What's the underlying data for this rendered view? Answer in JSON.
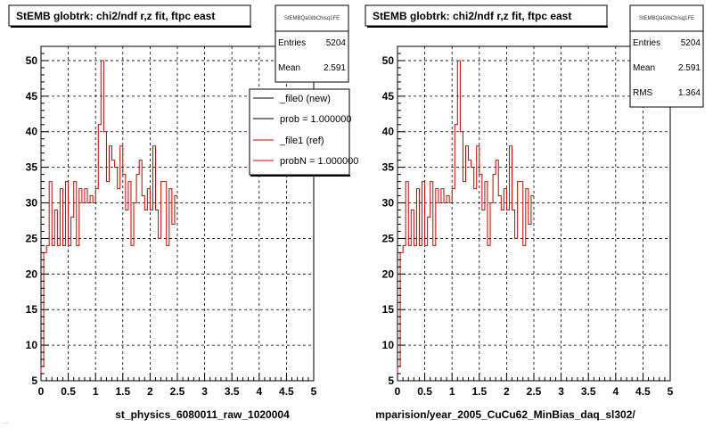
{
  "footer_text": "...",
  "legend": {
    "entries": [
      {
        "label": "_file0 (new)",
        "color": "#000000"
      },
      {
        "label": "prob = 1.000000",
        "color": "#000000"
      },
      {
        "label": "_file1 (ref)",
        "color": "#cc0000"
      },
      {
        "label": "probN = 1.000000",
        "color": "#cc0000"
      }
    ]
  },
  "chart_data": [
    {
      "type": "step",
      "title": "StEMB globtrk: chi2/ndf r,z fit, ftpc east",
      "stats": {
        "name": "StEMBQaGlbChisq1FE",
        "rows": [
          {
            "label": "Entries",
            "value": "5204"
          },
          {
            "label": "Mean",
            "value": "2.591"
          }
        ]
      },
      "xlabel": "st_physics_6080011_raw_1020004",
      "xlim": [
        0,
        5
      ],
      "ylim": [
        5,
        52
      ],
      "xticks": [
        "0",
        "0.5",
        "1",
        "1.5",
        "2",
        "2.5",
        "3",
        "3.5",
        "4",
        "4.5",
        "5"
      ],
      "yticks": [
        "5",
        "10",
        "15",
        "20",
        "25",
        "30",
        "35",
        "40",
        "45",
        "50"
      ],
      "grid": true,
      "bin_width": 0.05,
      "x_start": 0,
      "values": [
        7,
        23,
        24,
        33,
        24,
        29,
        24,
        32,
        24,
        33,
        24,
        28,
        33,
        24,
        32,
        30,
        32,
        30,
        31,
        30,
        32,
        41,
        50,
        40,
        33,
        38,
        36,
        35,
        32,
        38,
        34,
        29,
        33,
        24,
        30,
        34,
        36,
        31,
        29,
        32,
        29,
        38,
        29,
        25,
        33,
        33,
        24,
        32,
        27,
        31
      ],
      "series_color": "#cc0000"
    },
    {
      "type": "step",
      "title": "StEMB globtrk: chi2/ndf r,z fit, ftpc east",
      "stats": {
        "name": "StEMBQaGlbChisq1FE",
        "rows": [
          {
            "label": "Entries",
            "value": "5204"
          },
          {
            "label": "Mean",
            "value": "2.591"
          },
          {
            "label": "RMS",
            "value": "1.364"
          }
        ]
      },
      "xlabel": "mparision/year_2005_CuCu62_MinBias_daq_sl302/",
      "xlim": [
        0,
        5
      ],
      "ylim": [
        5,
        52
      ],
      "xticks": [
        "0",
        "0.5",
        "1",
        "1.5",
        "2",
        "2.5",
        "3",
        "3.5",
        "4",
        "4.5",
        "5"
      ],
      "yticks": [
        "5",
        "10",
        "15",
        "20",
        "25",
        "30",
        "35",
        "40",
        "45",
        "50"
      ],
      "grid": true,
      "bin_width": 0.05,
      "x_start": 0,
      "values": [
        7,
        23,
        24,
        33,
        24,
        29,
        24,
        32,
        24,
        33,
        24,
        28,
        33,
        24,
        32,
        30,
        32,
        30,
        31,
        30,
        32,
        41,
        50,
        40,
        33,
        38,
        36,
        35,
        32,
        38,
        34,
        29,
        33,
        24,
        30,
        34,
        36,
        31,
        29,
        32,
        29,
        38,
        29,
        25,
        33,
        33,
        24,
        32,
        27,
        31
      ],
      "series_color": "#cc0000"
    }
  ]
}
